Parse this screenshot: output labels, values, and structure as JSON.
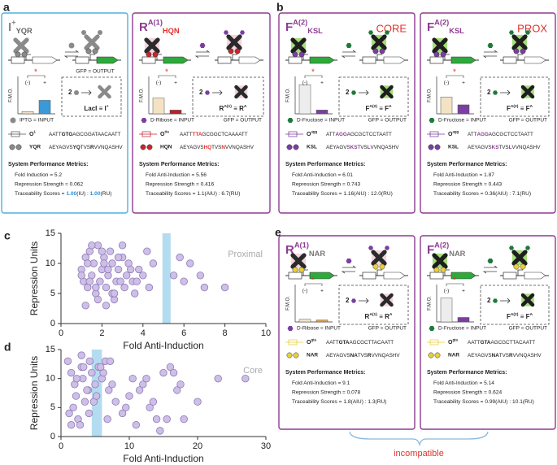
{
  "panels": [
    "a",
    "b",
    "c",
    "d",
    "e"
  ],
  "incompatible": "incompatible",
  "cards": [
    {
      "border": "#4fb0de",
      "title": [
        {
          "t": "I"
        },
        {
          "t": "+",
          "sup": true
        },
        {
          "t": "YQR",
          "sub": true,
          "color": "#666"
        }
      ],
      "title_color": "#888",
      "body_color": "#8a8a8a",
      "glow_color": "#ffffff",
      "foot_color": "#8a8a8a",
      "inducer_color": "#8a8a8a",
      "gene_color": "#2eaa3a",
      "output": "GFP = OUTPUT",
      "input": "IPTG = INPUT",
      "fmo": {
        "label": "F.M.O.",
        "categories": [
          "(-)",
          "+"
        ],
        "values": [
          0.06,
          0.36
        ],
        "colors": [
          "#f4e3c3",
          "#3a9ad9"
        ],
        "ylim": [
          0,
          1
        ],
        "sig": "*"
      },
      "two": "2",
      "eq": [
        {
          "t": "LacI ≡ I"
        },
        {
          "t": "+",
          "sup": true
        }
      ],
      "operator": {
        "name": [
          {
            "t": "O"
          },
          {
            "t": "1",
            "sup": true
          }
        ],
        "seq": [
          {
            "t": "AATT"
          },
          {
            "t": "GTG",
            "bold": true
          },
          {
            "t": "AGCGGATAACAATT"
          }
        ]
      },
      "protein": {
        "name": "YQR",
        "seq": [
          {
            "t": "AEYAGVS"
          },
          {
            "t": "YQ",
            "bold": true
          },
          {
            "t": "TVS"
          },
          {
            "t": "R",
            "bold": true
          },
          {
            "t": "VVNQASHV"
          }
        ]
      },
      "metrics_title": "System Performance Metrics:",
      "metrics": [
        [
          {
            "t": "Fold Induction = 5.2"
          }
        ],
        [
          {
            "t": "Repression Strength = 0.062"
          }
        ],
        [
          {
            "t": "Traceability Scores = "
          },
          {
            "t": "1.00",
            "bold": true,
            "color": "#2b8fd6"
          },
          {
            "t": "(IU) : "
          },
          {
            "t": "1.00",
            "bold": true,
            "color": "#2b8fd6"
          },
          {
            "t": "(RU)"
          }
        ]
      ]
    },
    {
      "border": "#8e3b92",
      "title": [
        {
          "t": "R"
        },
        {
          "t": "A(1)",
          "sup": true
        },
        {
          "t": "HQN",
          "sub": true,
          "color": "#e0312b"
        }
      ],
      "title_color": "#8e3b92",
      "body_color": "#2a2a2a",
      "glow_color": "#f1c9d6",
      "foot_color": "#c8262c",
      "inducer_color": "#7a3fa0",
      "gene_color": "#2eaa3a",
      "output": "GFP = OUTPUT",
      "input": "D-Ribose = INPUT",
      "fmo": {
        "label": "F.M.O.",
        "categories": [
          "(-)",
          "+"
        ],
        "values": [
          0.42,
          0.1
        ],
        "colors": [
          "#f4e3c3",
          "#b8202a"
        ],
        "ylim": [
          0,
          1
        ],
        "sig": "*"
      },
      "two": "2",
      "eq": [
        {
          "t": "R"
        },
        {
          "t": "A(1)",
          "sup": true
        },
        {
          "t": " ≡ R"
        },
        {
          "t": "A",
          "sup": true
        }
      ],
      "operator": {
        "name": [
          {
            "t": "O"
          },
          {
            "t": "tta",
            "sup": true
          }
        ],
        "seq": [
          {
            "t": "AATT"
          },
          {
            "t": "TTA",
            "bold": true,
            "color": "#e0312b"
          },
          {
            "t": "GCGGCTCAAAATT"
          }
        ]
      },
      "protein": {
        "name": "HQN",
        "seq": [
          {
            "t": "AEYAGVS"
          },
          {
            "t": "HQ",
            "bold": true,
            "color": "#e0312b"
          },
          {
            "t": "TVS"
          },
          {
            "t": "N",
            "bold": true,
            "color": "#e0312b"
          },
          {
            "t": "VVNQASHV"
          }
        ]
      },
      "metrics_title": "System Performance Metrics:",
      "metrics": [
        [
          {
            "t": "Fold Anti-Induction = 5.56"
          }
        ],
        [
          {
            "t": "Repression Strength = 0.416"
          }
        ],
        [
          {
            "t": "Traceability Scores = 1.1(AIU) : 6.7(RU)"
          }
        ]
      ]
    },
    {
      "border": "#8e3b92",
      "title": [
        {
          "t": "F"
        },
        {
          "t": "A(2)",
          "sup": true
        },
        {
          "t": "KSL",
          "sub": true,
          "color": "#8e3b92"
        }
      ],
      "title_color": "#8e3b92",
      "tag": "CORE",
      "body_color": "#1e1e1e",
      "glow_color": "#8fd45a",
      "foot_color": "#7a3fa0",
      "inducer_color": "#1f7a3a",
      "gene_color": "#2eaa3a",
      "output": "GFP = OUTPUT",
      "input": "D-Fructose = INPUT",
      "fmo": {
        "label": "F.M.O.",
        "categories": [
          "(-)",
          "+"
        ],
        "values": [
          0.78,
          0.1
        ],
        "colors": [
          "#ededed",
          "#7a3fa0"
        ],
        "ylim": [
          0,
          1
        ],
        "sig": "*"
      },
      "two": "2",
      "eq": [
        {
          "t": "F"
        },
        {
          "t": "A(2)",
          "sup": true
        },
        {
          "t": " ≡ F"
        },
        {
          "t": "A",
          "sup": true
        }
      ],
      "operator": {
        "name": [
          {
            "t": "O"
          },
          {
            "t": "agg",
            "sup": true
          }
        ],
        "seq": [
          {
            "t": "ATT"
          },
          {
            "t": "AGG",
            "bold": true,
            "color": "#8e3b92"
          },
          {
            "t": "AGCGCTCCTAATT"
          }
        ]
      },
      "protein": {
        "name": "KSL",
        "seq": [
          {
            "t": "AEYAGVS"
          },
          {
            "t": "KS",
            "bold": true,
            "color": "#8e3b92"
          },
          {
            "t": "TVS"
          },
          {
            "t": "L",
            "bold": true,
            "color": "#8e3b92"
          },
          {
            "t": "VVNQASHV"
          }
        ]
      },
      "metrics_title": "System Performance Metrics:",
      "metrics": [
        [
          {
            "t": "Fold Anti-Induction = 6.01"
          }
        ],
        [
          {
            "t": "Repression Strength = 0.743"
          }
        ],
        [
          {
            "t": "Traceability Scores = 1.16(AIU) : 12.0(RU)"
          }
        ]
      ]
    },
    {
      "border": "#8e3b92",
      "title": [
        {
          "t": "F"
        },
        {
          "t": "A(2)",
          "sup": true
        },
        {
          "t": "KSL",
          "sub": true,
          "color": "#8e3b92"
        }
      ],
      "title_color": "#8e3b92",
      "tag": "PROX",
      "body_color": "#1e1e1e",
      "glow_color": "#8fd45a",
      "foot_color": "#7a3fa0",
      "inducer_color": "#1f7a3a",
      "gene_color": "#2eaa3a",
      "output": "GFP = OUTPUT",
      "input": "D-Fructose = INPUT",
      "fmo": {
        "label": "F.M.O.",
        "categories": [
          "(-)",
          "+"
        ],
        "values": [
          0.45,
          0.24
        ],
        "colors": [
          "#f4e3c3",
          "#7a3fa0"
        ],
        "ylim": [
          0,
          1
        ],
        "sig": "*"
      },
      "two": "2",
      "eq": [
        {
          "t": "F"
        },
        {
          "t": "A(2)",
          "sup": true
        },
        {
          "t": " ≡ F"
        },
        {
          "t": "A",
          "sup": true
        }
      ],
      "operator": {
        "name": [
          {
            "t": "O"
          },
          {
            "t": "agg",
            "sup": true
          }
        ],
        "seq": [
          {
            "t": "ATT"
          },
          {
            "t": "AGG",
            "bold": true,
            "color": "#8e3b92"
          },
          {
            "t": "AGCGCTCCTAATT"
          }
        ]
      },
      "protein": {
        "name": "KSL",
        "seq": [
          {
            "t": "AEYAGVS"
          },
          {
            "t": "KS",
            "bold": true,
            "color": "#8e3b92"
          },
          {
            "t": "TVS"
          },
          {
            "t": "L",
            "bold": true,
            "color": "#8e3b92"
          },
          {
            "t": "VVNQASHV"
          }
        ]
      },
      "metrics_title": "System Performance Metrics:",
      "metrics": [
        [
          {
            "t": "Fold Anti-Induction = 1.87"
          }
        ],
        [
          {
            "t": "Repression Strength = 0.443"
          }
        ],
        [
          {
            "t": "Traceability Scores = 0.36(AIU) : 7.1(RU)"
          }
        ]
      ]
    },
    {
      "border": "#8e3b92",
      "title": [
        {
          "t": "R"
        },
        {
          "t": "A(1)",
          "sup": true
        },
        {
          "t": "NAR",
          "sub": true,
          "color": "#777"
        }
      ],
      "title_color": "#8e3b92",
      "body_color": "#2a2a2a",
      "glow_color": "#f1c9d6",
      "foot_color": "#e8cf3a",
      "inducer_color": "#7a3fa0",
      "gene_color": "#2eaa3a",
      "output": "GFP = OUTPUT",
      "input": "D-Ribose = INPUT",
      "fmo": {
        "label": "F.M.O.",
        "categories": [
          "(-)",
          "+"
        ],
        "values": [
          0.07,
          0.05
        ],
        "colors": [
          "#f4e3c3",
          "#e0a040"
        ],
        "ylim": [
          0,
          1
        ],
        "sig": "*"
      },
      "two": "2",
      "eq": [
        {
          "t": "R"
        },
        {
          "t": "A(1)",
          "sup": true
        },
        {
          "t": " ≡ R"
        },
        {
          "t": "A",
          "sup": true
        }
      ],
      "operator": {
        "name": [
          {
            "t": "O"
          },
          {
            "t": "gta",
            "sup": true
          }
        ],
        "seq": [
          {
            "t": "AATT"
          },
          {
            "t": "GTA",
            "bold": true
          },
          {
            "t": "AGCGCTTACAATT"
          }
        ]
      },
      "protein": {
        "name": "NAR",
        "seq": [
          {
            "t": "AEYAGVS"
          },
          {
            "t": "NA",
            "bold": true
          },
          {
            "t": "TVS"
          },
          {
            "t": "R",
            "bold": true
          },
          {
            "t": "VVNQASHV"
          }
        ]
      },
      "metrics_title": "System Performance Metrics:",
      "metrics": [
        [
          {
            "t": "Fold Anti-Induction = 9.1"
          }
        ],
        [
          {
            "t": "Repression Strength = 0.078"
          }
        ],
        [
          {
            "t": "Traceability Scores = 1.8(AIU) : 1.3(RU)"
          }
        ]
      ]
    },
    {
      "border": "#8e3b92",
      "title": [
        {
          "t": "F"
        },
        {
          "t": "A(2)",
          "sup": true
        },
        {
          "t": "NAR",
          "sub": true,
          "color": "#777"
        }
      ],
      "title_color": "#8e3b92",
      "body_color": "#1e1e1e",
      "glow_color": "#8fd45a",
      "foot_color": "#e8cf3a",
      "inducer_color": "#1f7a3a",
      "gene_color": "#2eaa3a",
      "output": "GFP = OUTPUT",
      "input": "D-Fructose = INPUT",
      "fmo": {
        "label": "F.M.O.",
        "categories": [
          "(-)",
          "+"
        ],
        "values": [
          0.64,
          0.12
        ],
        "colors": [
          "#ededed",
          "#7a3fa0"
        ],
        "ylim": [
          0,
          1
        ],
        "sig": "*"
      },
      "two": "2",
      "eq": [
        {
          "t": "F"
        },
        {
          "t": "A(2)",
          "sup": true
        },
        {
          "t": " ≡ F"
        },
        {
          "t": "A",
          "sup": true
        }
      ],
      "operator": {
        "name": [
          {
            "t": "O"
          },
          {
            "t": "gta",
            "sup": true
          }
        ],
        "seq": [
          {
            "t": "AATT"
          },
          {
            "t": "GTA",
            "bold": true
          },
          {
            "t": "AGCGCTTACAATT"
          }
        ]
      },
      "protein": {
        "name": "NAR",
        "seq": [
          {
            "t": "AEYAGVS"
          },
          {
            "t": "NA",
            "bold": true
          },
          {
            "t": "TVS"
          },
          {
            "t": "R",
            "bold": true
          },
          {
            "t": "VVNQASHV"
          }
        ]
      },
      "metrics_title": "System Performance Metrics:",
      "metrics": [
        [
          {
            "t": "Fold Anti-Induction = 5.14"
          }
        ],
        [
          {
            "t": "Repression Strength = 0.624"
          }
        ],
        [
          {
            "t": "Traceability Scores = 0.99(AIU) : 10.1(RU)"
          }
        ]
      ]
    }
  ],
  "chart_data": [
    {
      "type": "scatter",
      "watermark": "Proximal",
      "xlabel": "Fold Anti-Induction",
      "ylabel": "Repression Units",
      "color": "#cdbfe6",
      "band": [
        4.95,
        5.35
      ],
      "band_color": "#b3dcf0",
      "x": [
        1.0,
        1.1,
        1.2,
        1.3,
        1.4,
        1.5,
        1.6,
        1.7,
        1.8,
        1.9,
        2.0,
        2.1,
        2.2,
        2.3,
        2.4,
        2.5,
        2.6,
        2.7,
        2.8,
        3.0,
        3.1,
        3.2,
        3.3,
        3.5,
        3.6,
        3.8,
        4.0,
        4.2,
        4.5,
        5.8,
        6.0,
        6.3,
        6.8,
        7.0,
        8.0,
        1.2,
        1.5,
        1.8,
        2.2,
        2.5,
        2.9,
        3.4,
        1.0,
        1.3,
        1.7,
        2.0,
        2.3,
        2.6,
        3.0,
        3.7,
        4.3,
        5.5,
        1.4,
        2.1,
        2.8
      ],
      "values": [
        9,
        7,
        11,
        6,
        12,
        8,
        10,
        5,
        13,
        7,
        9,
        11,
        6,
        8,
        12,
        10,
        4,
        7,
        9,
        11,
        6,
        8,
        10,
        7,
        5,
        9,
        8,
        12,
        10,
        11,
        7,
        10,
        8,
        6,
        6,
        3,
        13,
        4,
        3,
        5,
        7,
        9,
        8,
        10,
        6,
        12,
        9,
        5,
        13,
        7,
        6,
        8,
        7,
        10,
        11
      ],
      "xlim": [
        0,
        10
      ],
      "ylim": [
        0,
        15
      ],
      "xticks": [
        0,
        2,
        4,
        6,
        8,
        10
      ],
      "yticks": [
        0,
        5,
        10,
        15
      ]
    },
    {
      "type": "scatter",
      "watermark": "Core",
      "xlabel": "Fold Anti-Induction",
      "ylabel": "Repression Units",
      "color": "#cdbfe6",
      "band": [
        4.5,
        6.0
      ],
      "band_color": "#b3dcf0",
      "x": [
        1,
        1.5,
        2,
        2.2,
        2.5,
        3,
        3.2,
        3.5,
        4,
        4.2,
        4.5,
        5,
        5.5,
        6,
        6.5,
        7,
        8,
        9,
        10,
        11,
        12,
        13,
        14,
        15,
        16,
        17,
        18,
        20,
        23,
        27,
        1.2,
        2.8,
        3.8,
        4.8,
        6.2,
        7.5,
        9.5,
        12.5,
        15.5,
        1.8,
        3.3,
        5.2,
        7.2,
        10.5,
        14.5,
        17.5,
        2.3,
        4.1,
        6.8,
        11.5,
        13.5,
        16.5,
        1.5,
        3,
        5.8
      ],
      "values": [
        13,
        11,
        9,
        7,
        3,
        12,
        10,
        6,
        8,
        13,
        11,
        9,
        12,
        10,
        13,
        8,
        6,
        4,
        7,
        2,
        9,
        5,
        3,
        11,
        12,
        8,
        3,
        6,
        10,
        10,
        4,
        2,
        8,
        6,
        11,
        9,
        5,
        10,
        3,
        5,
        12,
        7,
        13,
        10,
        1,
        9,
        10,
        4,
        3,
        8,
        6,
        11,
        2,
        14,
        12
      ],
      "xlim": [
        0,
        30
      ],
      "ylim": [
        0,
        15
      ],
      "xticks": [
        0,
        10,
        20,
        30
      ],
      "yticks": [
        0,
        5,
        10,
        15
      ]
    }
  ]
}
